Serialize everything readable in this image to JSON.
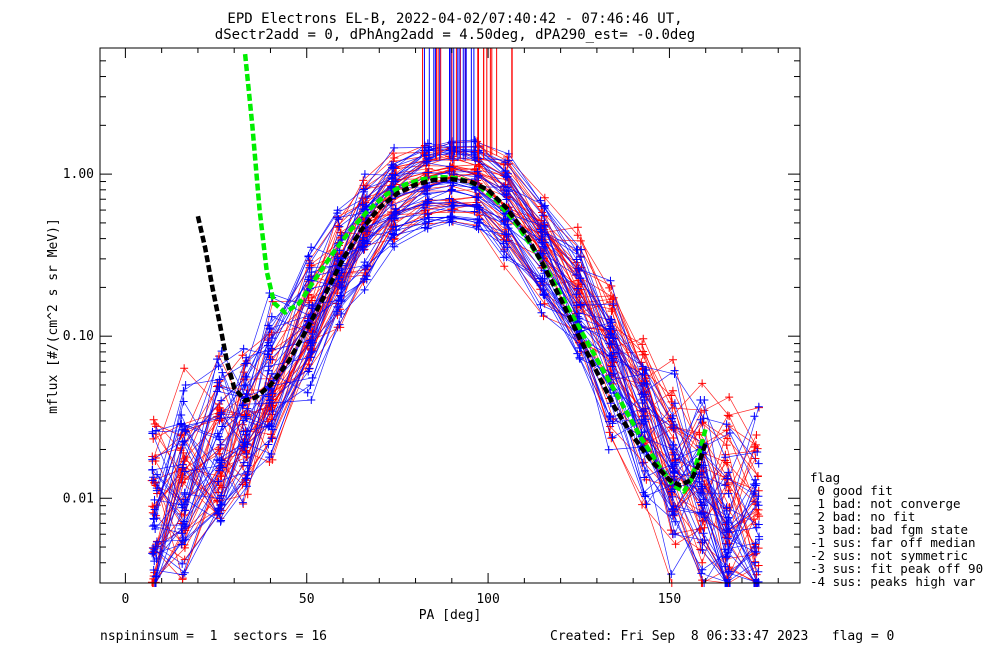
{
  "chart_data": {
    "type": "line",
    "title": "EPD Electrons EL-B, 2022-04-02/07:40:42 - 07:46:46 UT,",
    "subtitle": "dSectr2add = 0, dPhAng2add = 4.50deg, dPA290_est=  -0.0deg",
    "xlabel": "PA [deg]",
    "ylabel": "mflux [#/(cm^2 s sr MeV)]",
    "xlim": [
      -7,
      186
    ],
    "ylim": [
      0.003,
      6.0
    ],
    "yscale": "log",
    "xticks": [
      0,
      50,
      100,
      150
    ],
    "xtick_labels": [
      "0",
      "50",
      "100",
      "150"
    ],
    "yticks": [
      0.01,
      0.1,
      1.0
    ],
    "ytick_labels": [
      "0.01",
      "0.10",
      "1.00"
    ],
    "grid": false,
    "colors": {
      "bundle_red": "#ff0000",
      "bundle_blue": "#0000ff",
      "fit_green": "#00ee00",
      "fit_black": "#000000"
    },
    "spike_x_range": [
      81,
      108
    ],
    "spike_y_range": [
      1.2,
      6.0
    ],
    "bundle_red_pa": [
      8,
      16,
      26,
      33,
      40,
      51,
      59,
      66,
      74,
      83,
      90,
      97,
      105,
      115,
      125,
      134,
      143,
      151,
      159,
      166,
      174
    ],
    "bundle_blue_pa": [
      8,
      16,
      26,
      33,
      40,
      51,
      59,
      66,
      74,
      83,
      90,
      97,
      105,
      115,
      125,
      134,
      143,
      151,
      159,
      166,
      174
    ],
    "bundle_center_flux": [
      0.008,
      0.012,
      0.02,
      0.03,
      0.05,
      0.12,
      0.25,
      0.45,
      0.68,
      0.85,
      0.9,
      0.85,
      0.62,
      0.32,
      0.16,
      0.07,
      0.03,
      0.015,
      0.009,
      0.007,
      0.006
    ],
    "series": [
      {
        "color": "#00ee00",
        "style": "dashed",
        "x": [
          33,
          35,
          37,
          39,
          41,
          44,
          48,
          52,
          57,
          62,
          67,
          72,
          77,
          82,
          87,
          92,
          97,
          102,
          107,
          112,
          117,
          122,
          127,
          132,
          137,
          142,
          147,
          151,
          154,
          156,
          158,
          160
        ],
        "y": [
          5.5,
          2.0,
          0.6,
          0.25,
          0.16,
          0.14,
          0.16,
          0.22,
          0.32,
          0.45,
          0.6,
          0.75,
          0.86,
          0.93,
          0.96,
          0.94,
          0.86,
          0.7,
          0.52,
          0.36,
          0.24,
          0.15,
          0.095,
          0.06,
          0.038,
          0.024,
          0.016,
          0.012,
          0.011,
          0.013,
          0.018,
          0.027
        ]
      },
      {
        "color": "#000000",
        "style": "dashed",
        "x": [
          20,
          22,
          24,
          26,
          28,
          30,
          33,
          36,
          40,
          45,
          50,
          55,
          60,
          65,
          70,
          75,
          80,
          85,
          90,
          95,
          100,
          105,
          110,
          115,
          120,
          125,
          130,
          135,
          140,
          145,
          150,
          153,
          156,
          158,
          160
        ],
        "y": [
          0.55,
          0.35,
          0.2,
          0.12,
          0.07,
          0.048,
          0.04,
          0.042,
          0.05,
          0.07,
          0.11,
          0.18,
          0.3,
          0.45,
          0.62,
          0.76,
          0.86,
          0.92,
          0.93,
          0.9,
          0.8,
          0.62,
          0.44,
          0.28,
          0.17,
          0.1,
          0.06,
          0.036,
          0.024,
          0.017,
          0.013,
          0.012,
          0.013,
          0.016,
          0.022
        ]
      }
    ],
    "legend": {
      "title": "flag",
      "entries": [
        " 0 good fit",
        " 1 bad: not converge",
        " 2 bad: no fit",
        " 3 bad: bad fgm state",
        "-1 sus: far off median",
        "-2 sus: not symmetric",
        "-3 sus: fit peak off 90",
        "-4 sus: peaks high var"
      ],
      "placement": "right"
    }
  },
  "footer": {
    "left": "nspininsum =  1  sectors = 16",
    "right": "Created: Fri Sep  8 06:33:47 2023   flag = 0"
  }
}
